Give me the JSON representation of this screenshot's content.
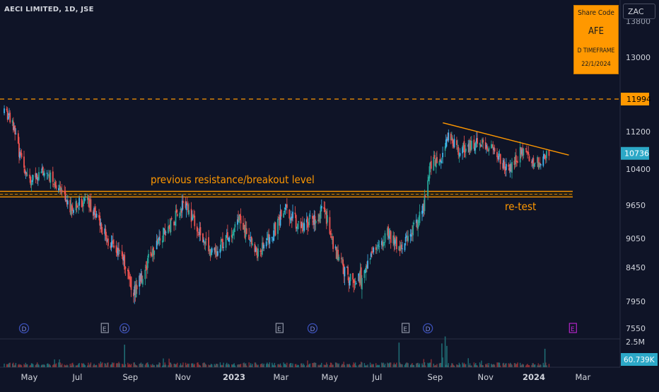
{
  "header": {
    "title": "AECI LIMITED, 1D, JSE",
    "symbol_button": "ZAC"
  },
  "share_box": {
    "label": "Share Code",
    "code": "AFE",
    "timeframe": "D TIMEFRAME",
    "date": "22/1/2024"
  },
  "annotations": {
    "resistance": "previous resistance/breakout level",
    "retest": "re-test"
  },
  "colors": {
    "background": "#0f1427",
    "up": "#26a69a",
    "up_light": "#3fb6f0",
    "down": "#ef5350",
    "orange": "#ff9800",
    "text": "#d1d4dc",
    "event_blue": "#3a4fb8",
    "event_magenta": "#c026d3"
  },
  "chart_data": {
    "type": "candlestick",
    "title": "AECI LIMITED, 1D, JSE",
    "price_axis": {
      "ticks": [
        "13000",
        "11200",
        "10400",
        "9650",
        "9050",
        "8450",
        "7950",
        "7550"
      ],
      "top_partial": "13800"
    },
    "price_labels": {
      "level_11994": "11994",
      "last_price": "10736"
    },
    "volume_axis": {
      "max_label": "2.5M",
      "last_volume": "60.739K"
    },
    "x_ticks": [
      "May",
      "Jul",
      "Sep",
      "Nov",
      "2023",
      "Mar",
      "May",
      "Jul",
      "Sep",
      "Nov",
      "2024",
      "Mar"
    ],
    "levels": {
      "dashed_resistance": 11994,
      "breakout_level": 9880
    },
    "trendline": {
      "from": {
        "date": "2023-09-22",
        "price": 11450
      },
      "to": {
        "date": "2024-01-22",
        "price": 10820
      }
    },
    "events": [
      {
        "type": "D",
        "date": "2022-04-25",
        "color": "blue"
      },
      {
        "type": "E",
        "date": "2022-08-01",
        "color": "grey"
      },
      {
        "type": "D",
        "date": "2022-08-25",
        "color": "blue"
      },
      {
        "type": "E",
        "date": "2023-03-01",
        "color": "grey"
      },
      {
        "type": "D",
        "date": "2023-04-10",
        "color": "blue"
      },
      {
        "type": "E",
        "date": "2023-08-01",
        "color": "grey"
      },
      {
        "type": "D",
        "date": "2023-08-28",
        "color": "blue"
      },
      {
        "type": "E",
        "date": "2024-02-20",
        "color": "magenta"
      }
    ],
    "path": [
      [
        "2022-04-01",
        11650
      ],
      [
        "2022-04-10",
        11500
      ],
      [
        "2022-04-20",
        10650
      ],
      [
        "2022-05-01",
        10100
      ],
      [
        "2022-05-20",
        10350
      ],
      [
        "2022-06-05",
        10050
      ],
      [
        "2022-06-20",
        9650
      ],
      [
        "2022-07-10",
        9750
      ],
      [
        "2022-07-25",
        9350
      ],
      [
        "2022-08-05",
        9000
      ],
      [
        "2022-08-20",
        8750
      ],
      [
        "2022-09-05",
        8050
      ],
      [
        "2022-09-15",
        8300
      ],
      [
        "2022-10-01",
        8900
      ],
      [
        "2022-10-20",
        9300
      ],
      [
        "2022-11-05",
        9700
      ],
      [
        "2022-11-25",
        9200
      ],
      [
        "2022-12-10",
        8700
      ],
      [
        "2022-12-25",
        9000
      ],
      [
        "2023-01-10",
        9400
      ],
      [
        "2023-02-01",
        8750
      ],
      [
        "2023-02-20",
        9100
      ],
      [
        "2023-03-08",
        9650
      ],
      [
        "2023-03-25",
        9250
      ],
      [
        "2023-04-10",
        9400
      ],
      [
        "2023-04-25",
        9550
      ],
      [
        "2023-05-05",
        8850
      ],
      [
        "2023-05-25",
        8250
      ],
      [
        "2023-06-10",
        8300
      ],
      [
        "2023-06-25",
        8800
      ],
      [
        "2023-07-10",
        9150
      ],
      [
        "2023-07-25",
        8850
      ],
      [
        "2023-08-10",
        9200
      ],
      [
        "2023-08-22",
        9550
      ],
      [
        "2023-08-31",
        10500
      ],
      [
        "2023-09-12",
        10650
      ],
      [
        "2023-09-22",
        11200
      ],
      [
        "2023-10-05",
        10800
      ],
      [
        "2023-10-25",
        10950
      ],
      [
        "2023-11-10",
        10900
      ],
      [
        "2023-11-25",
        10550
      ],
      [
        "2023-12-05",
        10400
      ],
      [
        "2023-12-20",
        10800
      ],
      [
        "2024-01-05",
        10500
      ],
      [
        "2024-01-22",
        10736
      ]
    ],
    "volume_spikes": [
      [
        "2022-08-25",
        0.55
      ],
      [
        "2023-07-24",
        0.6
      ],
      [
        "2023-09-14",
        0.58
      ],
      [
        "2023-09-18",
        0.75
      ],
      [
        "2023-09-20",
        0.52
      ],
      [
        "2024-01-17",
        0.45
      ]
    ]
  }
}
